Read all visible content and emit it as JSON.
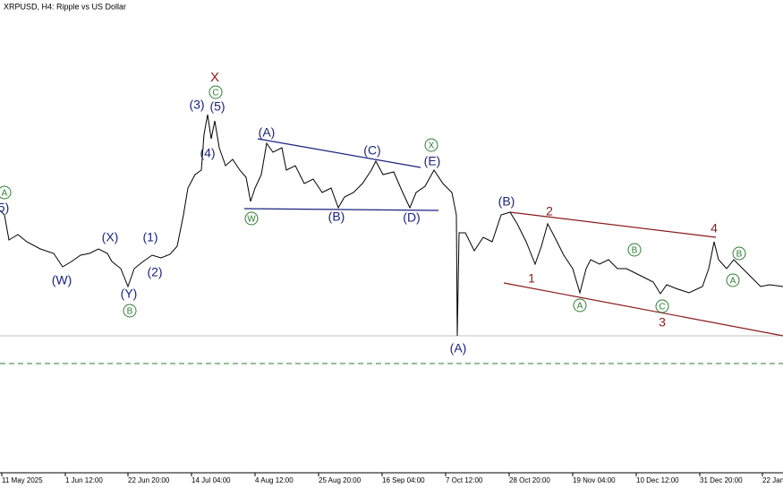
{
  "header": {
    "title": "XRPUSD, H4:  Ripple vs US Dollar"
  },
  "x_axis": {
    "labels": [
      "11 May 2025",
      "1 Jun 12:00",
      "22 Jun 20:00",
      "14 Jul 04:00",
      "4 Aug 12:00",
      "25 Aug 20:00",
      "16 Sep 04:00",
      "7 Oct 12:00",
      "28 Oct 20:00",
      "19 Nov 04:00",
      "10 Dec 12:00",
      "31 Dec 20:00",
      "22 Jan"
    ]
  },
  "wave_labels": [
    "X",
    "C",
    "(3)",
    "(5)",
    "(4)",
    "(A)",
    "(C)",
    "X",
    "(E)",
    "W",
    "(B)",
    "(D)",
    "A",
    "5)",
    "(X)",
    "(1)",
    "(W)",
    "(2)",
    "(Y)",
    "B",
    "(A)",
    "(B)",
    "2",
    "1",
    "4",
    "B",
    "B",
    "A",
    "A",
    "C",
    "3"
  ]
}
